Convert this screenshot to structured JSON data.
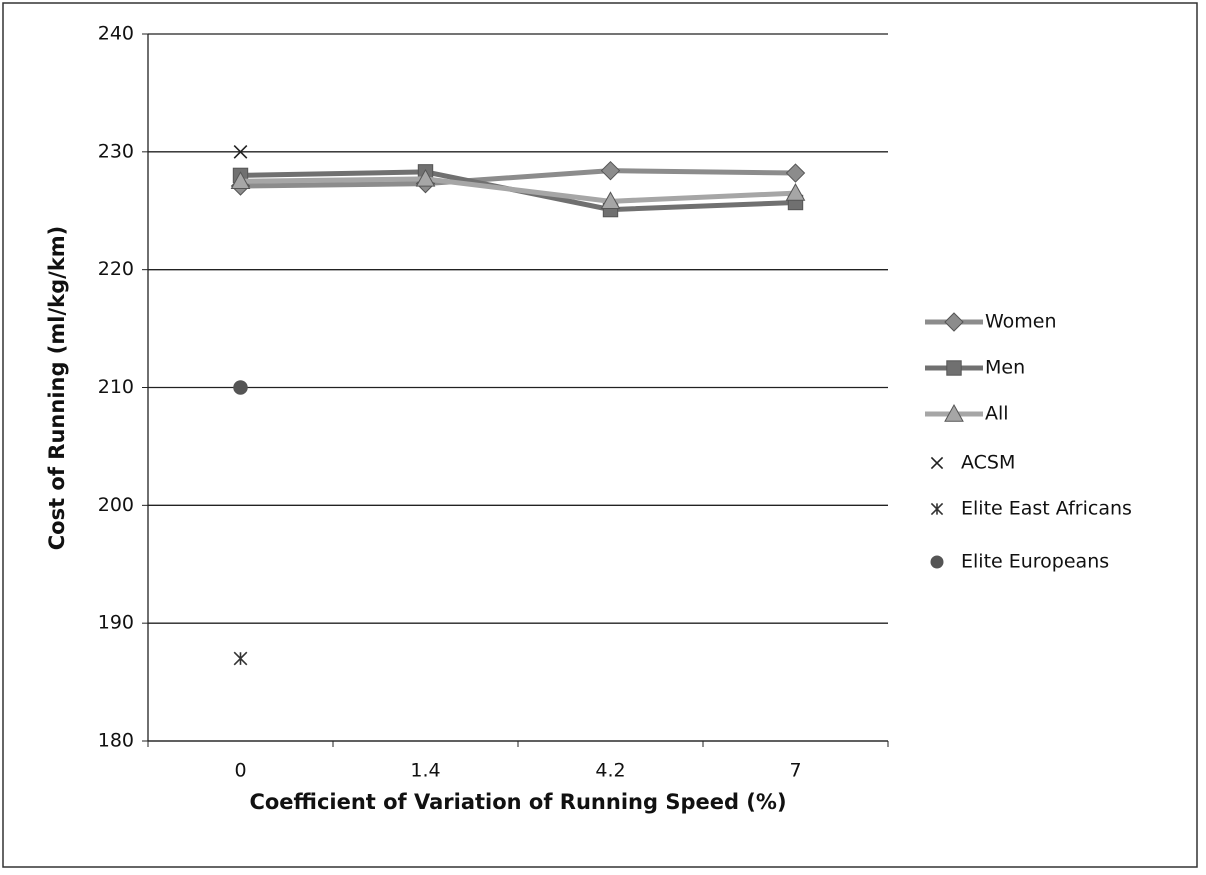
{
  "chart_data": {
    "type": "line",
    "xlabel": "Coefficient of Variation of Running Speed (%)",
    "ylabel": "Cost of Running (ml/kg/km)",
    "categories": [
      "0",
      "1.4",
      "4.2",
      "7"
    ],
    "ylim": [
      180,
      240
    ],
    "yticks": [
      180,
      190,
      200,
      210,
      220,
      230,
      240
    ],
    "grid": true,
    "legend": "right",
    "series": [
      {
        "name": "Women",
        "color": "#8c8c8c",
        "marker": "diamond",
        "values": [
          227.1,
          227.3,
          228.4,
          228.2
        ]
      },
      {
        "name": "Men",
        "color": "#707070",
        "marker": "square",
        "values": [
          228.0,
          228.3,
          225.1,
          225.7
        ]
      },
      {
        "name": "All",
        "color": "#a6a6a6",
        "marker": "triangle",
        "values": [
          227.5,
          227.7,
          225.8,
          226.5
        ]
      },
      {
        "name": "ACSM",
        "color": "#222222",
        "marker": "x",
        "values": [
          230,
          null,
          null,
          null
        ]
      },
      {
        "name": "Elite East Africans",
        "color": "#333333",
        "marker": "asterisk",
        "values": [
          187,
          null,
          null,
          null
        ]
      },
      {
        "name": "Elite Europeans",
        "color": "#555555",
        "marker": "circle",
        "values": [
          210,
          null,
          null,
          null
        ]
      }
    ]
  }
}
